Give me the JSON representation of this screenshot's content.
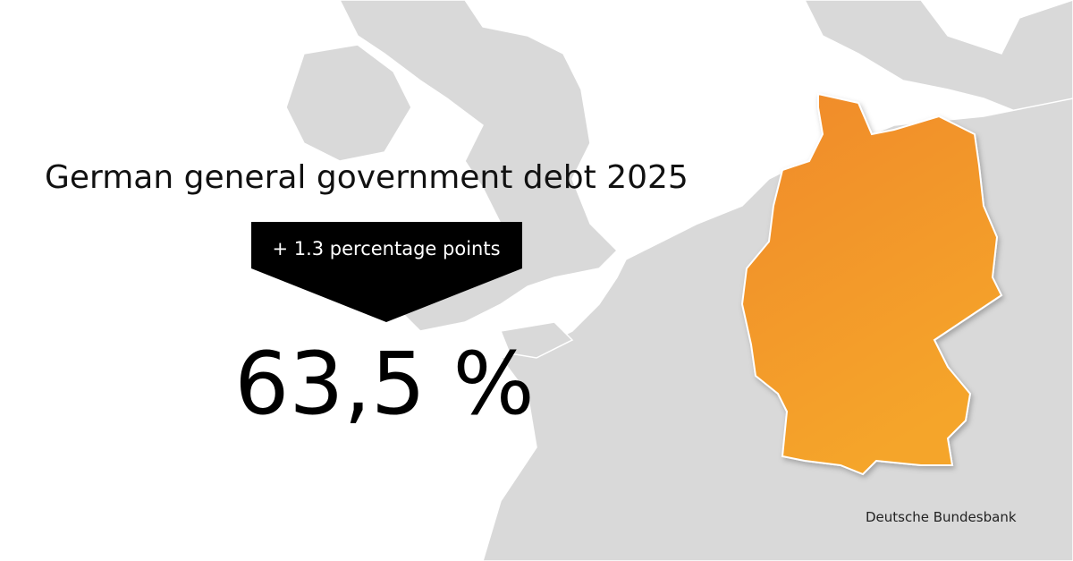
{
  "title": "German general government debt 2025",
  "change": "+ 1.3 percentage points",
  "value": "63,5 %",
  "source": "Deutsche Bundesbank"
}
